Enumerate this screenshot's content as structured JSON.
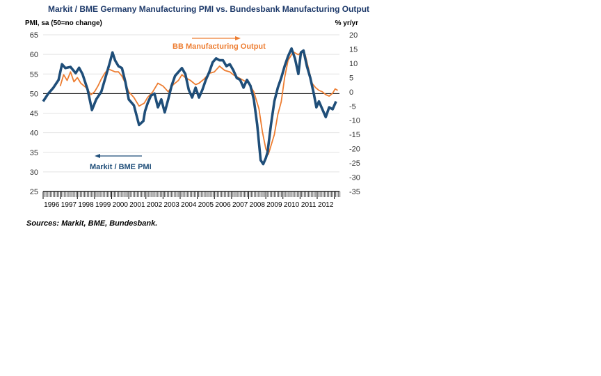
{
  "chart_data": {
    "type": "line",
    "title": "Markit / BME Germany Manufacturing PMI vs. Bundesbank Manufacturing Output",
    "ylabel_left": "PMI, sa (50=no change)",
    "ylabel_right": "% yr/yr",
    "ylim_left": [
      25,
      65
    ],
    "ylim_right": [
      -35,
      20
    ],
    "yticks_left": [
      25,
      30,
      35,
      40,
      45,
      50,
      55,
      60,
      65
    ],
    "yticks_right": [
      -35,
      -30,
      -25,
      -20,
      -15,
      -10,
      -5,
      0,
      5,
      10,
      15,
      20
    ],
    "xlim": [
      1996.0,
      2013.3
    ],
    "years": [
      "1996",
      "1997",
      "1998",
      "1999",
      "2000",
      "2001",
      "2002",
      "2003",
      "2004",
      "2005",
      "2006",
      "2007",
      "2008",
      "2009",
      "2010",
      "2011",
      "2012"
    ],
    "reference_line_left": 50,
    "series": [
      {
        "name": "Markit / BME PMI",
        "axis": "left",
        "color": "#1f4e79",
        "x": [
          1996.0,
          1996.3,
          1996.6,
          1996.9,
          1997.1,
          1997.3,
          1997.6,
          1997.9,
          1998.1,
          1998.3,
          1998.6,
          1998.85,
          1999.1,
          1999.4,
          1999.7,
          1999.9,
          2000.05,
          2000.2,
          2000.4,
          2000.6,
          2000.8,
          2001.0,
          2001.3,
          2001.6,
          2001.85,
          2001.95,
          2002.1,
          2002.3,
          2002.5,
          2002.7,
          2002.9,
          2003.1,
          2003.3,
          2003.5,
          2003.7,
          2003.9,
          2004.1,
          2004.3,
          2004.5,
          2004.7,
          2004.9,
          2005.1,
          2005.3,
          2005.5,
          2005.7,
          2005.9,
          2006.1,
          2006.3,
          2006.5,
          2006.7,
          2006.9,
          2007.1,
          2007.3,
          2007.5,
          2007.7,
          2007.9,
          2008.1,
          2008.3,
          2008.5,
          2008.7,
          2008.85,
          2009.0,
          2009.1,
          2009.3,
          2009.5,
          2009.7,
          2009.9,
          2010.1,
          2010.3,
          2010.5,
          2010.7,
          2010.9,
          2011.05,
          2011.2,
          2011.4,
          2011.6,
          2011.8,
          2011.95,
          2012.1,
          2012.3,
          2012.5,
          2012.7,
          2012.9,
          2013.1
        ],
        "values": [
          48.0,
          50.0,
          51.5,
          53.5,
          57.5,
          56.5,
          56.8,
          55.2,
          56.6,
          55.0,
          51.0,
          45.8,
          48.5,
          50.5,
          55.0,
          58.0,
          60.5,
          58.5,
          57.0,
          56.5,
          53.0,
          48.5,
          47.0,
          42.0,
          43.0,
          45.5,
          47.5,
          49.5,
          50.0,
          46.5,
          48.5,
          45.2,
          48.5,
          52.0,
          54.5,
          55.5,
          56.5,
          55.0,
          51.0,
          49.0,
          51.5,
          49.0,
          51.0,
          53.5,
          55.5,
          58.0,
          59.0,
          58.5,
          58.5,
          57.0,
          57.5,
          56.0,
          54.0,
          53.5,
          51.5,
          53.5,
          52.0,
          48.5,
          42.0,
          33.0,
          32.0,
          33.5,
          35.0,
          42.0,
          48.0,
          51.5,
          54.0,
          57.0,
          59.5,
          61.5,
          59.0,
          55.0,
          60.5,
          61.0,
          57.0,
          54.0,
          50.0,
          46.5,
          48.0,
          46.0,
          44.0,
          46.5,
          46.0,
          48.0
        ]
      },
      {
        "name": "BB Manufacturing Output",
        "axis": "right",
        "color": "#ed7d31",
        "x": [
          1997.0,
          1997.2,
          1997.4,
          1997.6,
          1997.8,
          1998.0,
          1998.2,
          1998.5,
          1998.8,
          1999.0,
          1999.2,
          1999.4,
          1999.6,
          1999.8,
          2000.0,
          2000.2,
          2000.4,
          2000.6,
          2000.8,
          2001.0,
          2001.3,
          2001.6,
          2001.9,
          2002.1,
          2002.4,
          2002.7,
          2003.0,
          2003.3,
          2003.6,
          2003.9,
          2004.1,
          2004.3,
          2004.6,
          2004.9,
          2005.1,
          2005.4,
          2005.7,
          2006.0,
          2006.3,
          2006.6,
          2006.9,
          2007.1,
          2007.4,
          2007.7,
          2008.0,
          2008.3,
          2008.6,
          2008.8,
          2009.0,
          2009.15,
          2009.3,
          2009.5,
          2009.7,
          2009.9,
          2010.1,
          2010.3,
          2010.6,
          2010.9,
          2011.1,
          2011.3,
          2011.5,
          2011.7,
          2011.9,
          2012.1,
          2012.3,
          2012.5,
          2012.7,
          2012.9,
          2013.05,
          2013.2
        ],
        "values": [
          2.0,
          6.0,
          4.0,
          7.0,
          3.5,
          5.0,
          3.0,
          1.5,
          -1.0,
          0.0,
          2.0,
          4.5,
          6.5,
          8.0,
          7.5,
          7.0,
          7.0,
          5.5,
          3.0,
          0.0,
          -2.0,
          -5.0,
          -4.0,
          -2.0,
          0.0,
          3.0,
          2.0,
          0.0,
          2.5,
          4.0,
          6.0,
          5.0,
          4.0,
          2.5,
          3.0,
          4.5,
          6.5,
          7.0,
          9.0,
          7.5,
          7.0,
          6.0,
          5.0,
          4.0,
          3.0,
          0.0,
          -6.0,
          -14.0,
          -20.0,
          -22.0,
          -19.0,
          -15.0,
          -8.0,
          -3.5,
          5.0,
          11.0,
          14.0,
          13.0,
          14.0,
          13.0,
          8.0,
          3.0,
          1.5,
          0.5,
          0.0,
          -1.0,
          -1.5,
          -0.5,
          1.0,
          0.5
        ]
      }
    ],
    "annotations": [
      {
        "text": "BB Manufacturing Output",
        "color": "#ed7d31",
        "arrow": "right"
      },
      {
        "text": "Markit / BME PMI",
        "color": "#1f4e79",
        "arrow": "left"
      }
    ]
  },
  "source": "Sources: Markit, BME, Bundesbank."
}
